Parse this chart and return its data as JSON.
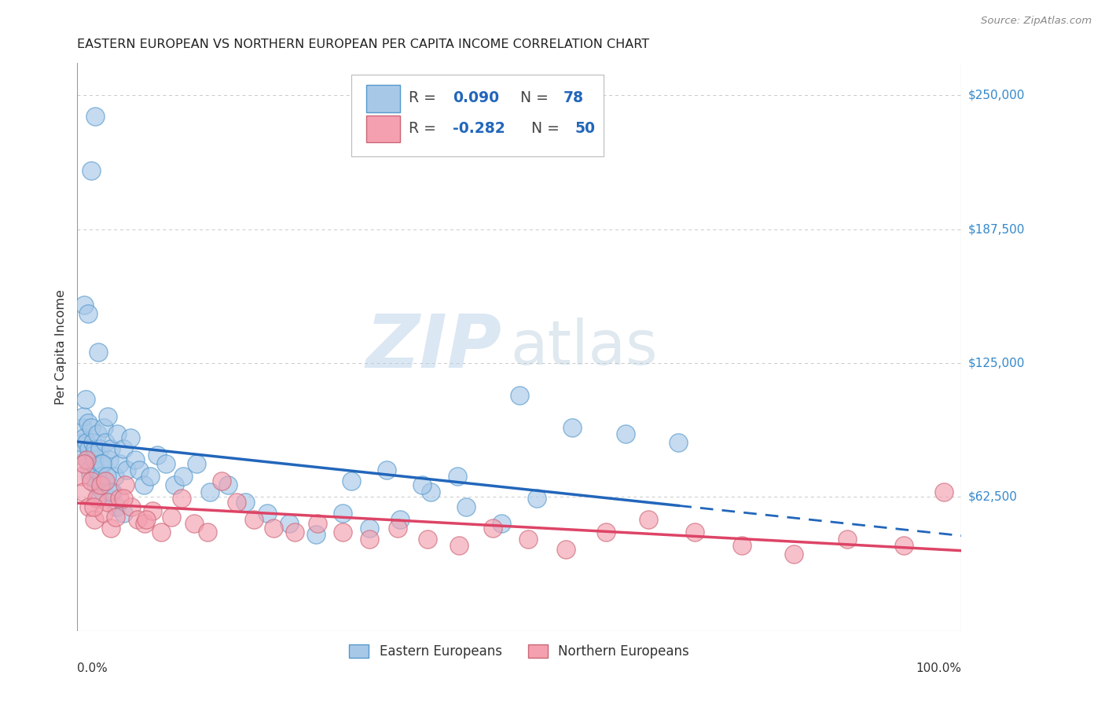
{
  "title": "EASTERN EUROPEAN VS NORTHERN EUROPEAN PER CAPITA INCOME CORRELATION CHART",
  "source": "Source: ZipAtlas.com",
  "ylabel": "Per Capita Income",
  "y_ticks": [
    0,
    62500,
    125000,
    187500,
    250000
  ],
  "y_tick_labels": [
    "",
    "$62,500",
    "$125,000",
    "$187,500",
    "$250,000"
  ],
  "ylim": [
    0,
    265000
  ],
  "xlim": [
    0.0,
    1.0
  ],
  "r_eastern": 0.09,
  "n_eastern": 78,
  "r_northern": -0.282,
  "n_northern": 50,
  "color_eastern_fill": "#a8c8e8",
  "color_eastern_edge": "#5599cc",
  "color_eastern_line": "#2266bb",
  "color_northern_fill": "#f4a0b0",
  "color_northern_edge": "#cc6677",
  "color_northern_line": "#dd4466",
  "background_color": "#ffffff",
  "grid_color": "#bbbbbb",
  "eastern_line_solid_end": 0.68,
  "eastern_x": [
    0.003,
    0.005,
    0.006,
    0.007,
    0.008,
    0.009,
    0.01,
    0.011,
    0.012,
    0.013,
    0.014,
    0.015,
    0.016,
    0.017,
    0.018,
    0.019,
    0.02,
    0.021,
    0.022,
    0.023,
    0.024,
    0.025,
    0.026,
    0.027,
    0.028,
    0.029,
    0.03,
    0.032,
    0.034,
    0.036,
    0.038,
    0.04,
    0.042,
    0.045,
    0.048,
    0.052,
    0.056,
    0.06,
    0.065,
    0.07,
    0.075,
    0.082,
    0.09,
    0.1,
    0.11,
    0.12,
    0.135,
    0.15,
    0.17,
    0.19,
    0.215,
    0.24,
    0.27,
    0.3,
    0.33,
    0.365,
    0.4,
    0.44,
    0.48,
    0.52,
    0.31,
    0.35,
    0.39,
    0.43,
    0.5,
    0.56,
    0.62,
    0.68,
    0.008,
    0.012,
    0.016,
    0.02,
    0.024,
    0.028,
    0.033,
    0.038,
    0.044,
    0.052
  ],
  "eastern_y": [
    82000,
    88000,
    95000,
    100000,
    90000,
    108000,
    88000,
    80000,
    97000,
    85000,
    75000,
    72000,
    95000,
    88000,
    82000,
    80000,
    85000,
    68000,
    75000,
    92000,
    62000,
    85000,
    78000,
    72000,
    68000,
    65000,
    95000,
    88000,
    100000,
    80000,
    85000,
    65000,
    72000,
    92000,
    78000,
    85000,
    75000,
    90000,
    80000,
    75000,
    68000,
    72000,
    82000,
    78000,
    68000,
    72000,
    78000,
    65000,
    68000,
    60000,
    55000,
    50000,
    45000,
    55000,
    48000,
    52000,
    65000,
    58000,
    50000,
    62000,
    70000,
    75000,
    68000,
    72000,
    110000,
    95000,
    92000,
    88000,
    152000,
    148000,
    215000,
    240000,
    130000,
    78000,
    72000,
    65000,
    58000,
    55000
  ],
  "northern_x": [
    0.004,
    0.007,
    0.01,
    0.013,
    0.016,
    0.019,
    0.022,
    0.026,
    0.03,
    0.034,
    0.038,
    0.043,
    0.048,
    0.054,
    0.061,
    0.068,
    0.076,
    0.085,
    0.095,
    0.106,
    0.118,
    0.132,
    0.147,
    0.163,
    0.18,
    0.2,
    0.222,
    0.246,
    0.272,
    0.3,
    0.33,
    0.362,
    0.396,
    0.432,
    0.47,
    0.51,
    0.553,
    0.598,
    0.646,
    0.698,
    0.752,
    0.81,
    0.871,
    0.935,
    0.98,
    0.008,
    0.018,
    0.032,
    0.052,
    0.078
  ],
  "northern_y": [
    72000,
    65000,
    80000,
    58000,
    70000,
    52000,
    62000,
    68000,
    55000,
    60000,
    48000,
    53000,
    62000,
    68000,
    58000,
    52000,
    50000,
    56000,
    46000,
    53000,
    62000,
    50000,
    46000,
    70000,
    60000,
    52000,
    48000,
    46000,
    50000,
    46000,
    43000,
    48000,
    43000,
    40000,
    48000,
    43000,
    38000,
    46000,
    52000,
    46000,
    40000,
    36000,
    43000,
    40000,
    65000,
    78000,
    58000,
    70000,
    62000,
    52000
  ]
}
